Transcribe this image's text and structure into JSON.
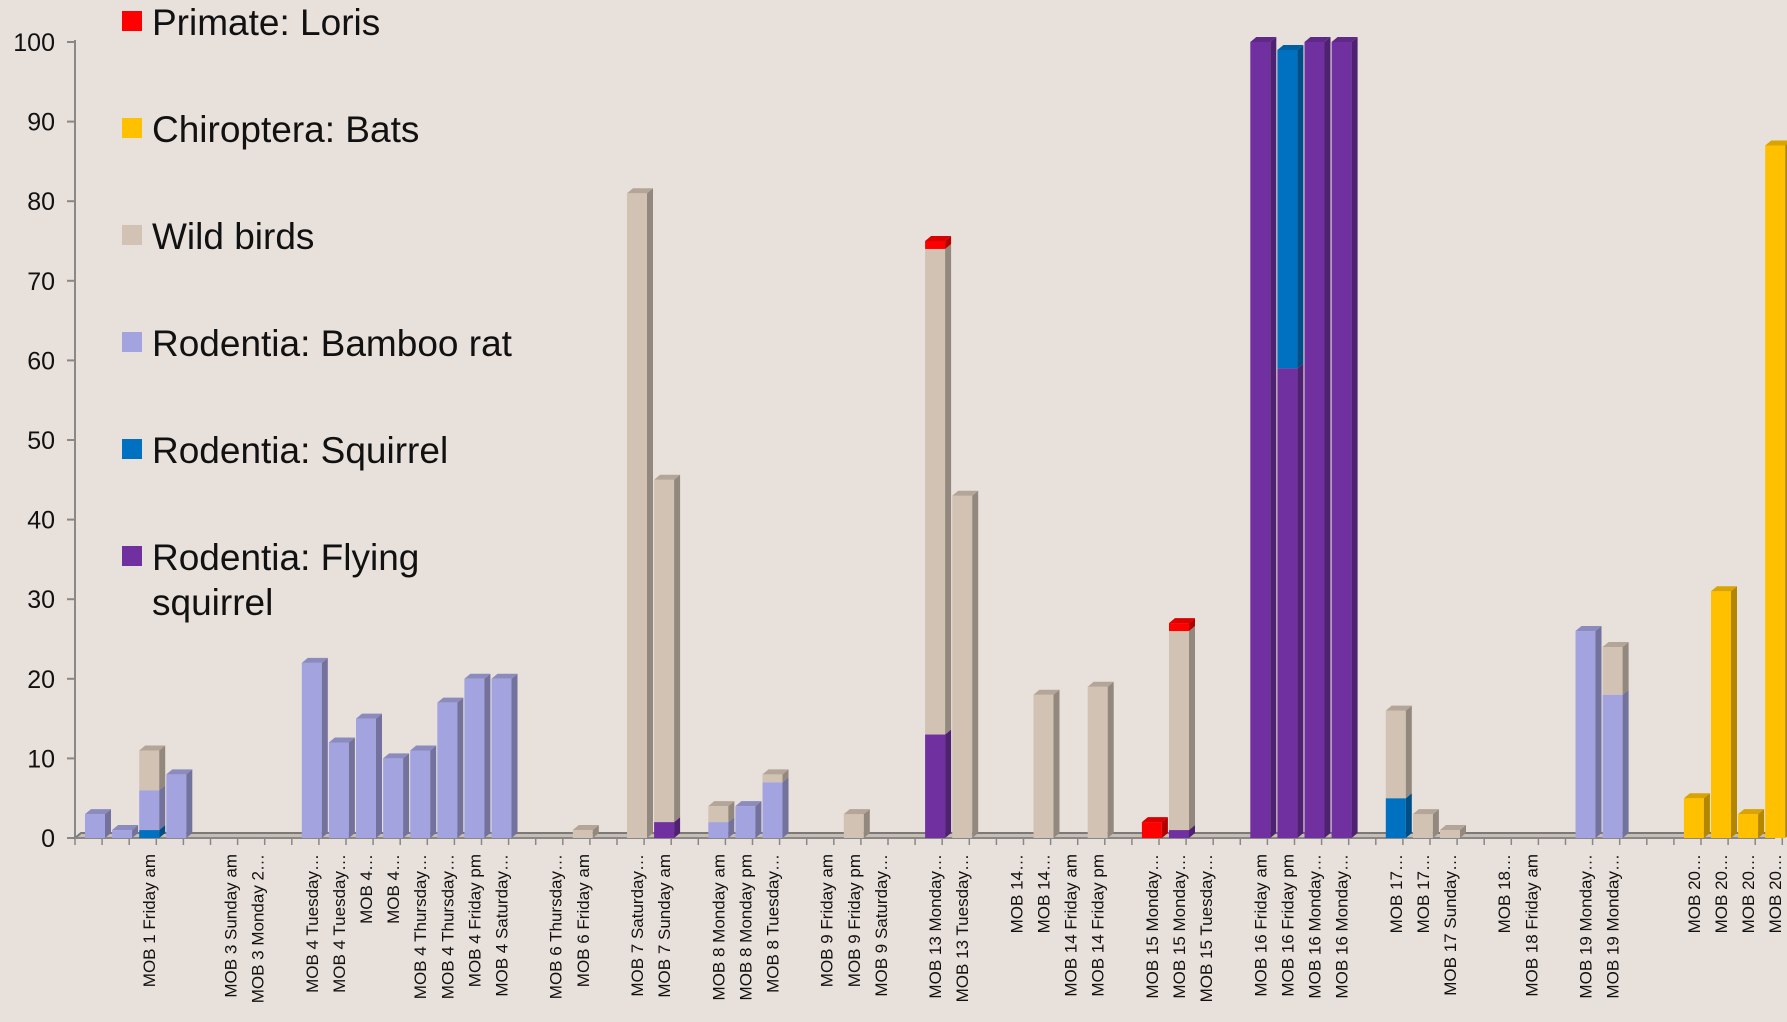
{
  "chart_data": {
    "type": "bar",
    "stacked": true,
    "title": "",
    "xlabel": "",
    "ylabel": "",
    "ylim": [
      0,
      100
    ],
    "yticks": [
      0,
      10,
      20,
      30,
      40,
      50,
      60,
      70,
      80,
      90,
      100
    ],
    "legend_position": "top-left",
    "series": [
      {
        "key": "flying",
        "name": "Rodentia: Flying squirrel",
        "color": "#7030a0"
      },
      {
        "key": "squirrel",
        "name": "Rodentia: Squirrel",
        "color": "#0070c0"
      },
      {
        "key": "bamboo",
        "name": "Rodentia: Bamboo rat",
        "color": "#a3a3e0"
      },
      {
        "key": "birds",
        "name": "Wild birds",
        "color": "#d2c2b3"
      },
      {
        "key": "bats",
        "name": "Chiroptera: Bats",
        "color": "#ffc000"
      },
      {
        "key": "loris",
        "name": "Primate: Loris",
        "color": "#ff0000"
      }
    ],
    "legend_order": [
      "loris",
      "bats",
      "birds",
      "bamboo",
      "squirrel",
      "flying"
    ],
    "bars": [
      {
        "slot": 0,
        "values": {
          "bamboo": 3
        }
      },
      {
        "slot": 1,
        "values": {
          "bamboo": 1
        }
      },
      {
        "slot": 2,
        "values": {
          "squirrel": 1,
          "bamboo": 5,
          "birds": 5
        }
      },
      {
        "slot": 3,
        "values": {
          "bamboo": 8
        }
      },
      {
        "slot": 8,
        "values": {
          "bamboo": 22
        }
      },
      {
        "slot": 9,
        "values": {
          "bamboo": 12
        }
      },
      {
        "slot": 10,
        "values": {
          "bamboo": 15
        }
      },
      {
        "slot": 11,
        "values": {
          "bamboo": 10
        }
      },
      {
        "slot": 12,
        "values": {
          "bamboo": 11
        }
      },
      {
        "slot": 13,
        "values": {
          "bamboo": 17
        }
      },
      {
        "slot": 14,
        "values": {
          "bamboo": 20
        }
      },
      {
        "slot": 15,
        "values": {
          "bamboo": 20
        }
      },
      {
        "slot": 18,
        "values": {
          "birds": 1
        }
      },
      {
        "slot": 20,
        "values": {
          "birds": 81
        }
      },
      {
        "slot": 21,
        "values": {
          "flying": 2,
          "birds": 43
        }
      },
      {
        "slot": 23,
        "values": {
          "bamboo": 2,
          "birds": 2
        }
      },
      {
        "slot": 24,
        "values": {
          "bamboo": 4
        }
      },
      {
        "slot": 25,
        "values": {
          "bamboo": 7,
          "birds": 1
        }
      },
      {
        "slot": 28,
        "values": {
          "birds": 3
        }
      },
      {
        "slot": 31,
        "values": {
          "flying": 13,
          "birds": 61,
          "loris": 1
        }
      },
      {
        "slot": 32,
        "values": {
          "birds": 43
        }
      },
      {
        "slot": 35,
        "values": {
          "birds": 18
        }
      },
      {
        "slot": 37,
        "values": {
          "birds": 19
        }
      },
      {
        "slot": 39,
        "values": {
          "loris": 2
        }
      },
      {
        "slot": 40,
        "values": {
          "flying": 1,
          "birds": 25,
          "loris": 1
        }
      },
      {
        "slot": 43,
        "values": {
          "flying": 100
        }
      },
      {
        "slot": 44,
        "values": {
          "flying": 59,
          "squirrel": 40
        }
      },
      {
        "slot": 45,
        "values": {
          "flying": 100
        }
      },
      {
        "slot": 46,
        "values": {
          "flying": 100
        }
      },
      {
        "slot": 48,
        "values": {
          "squirrel": 5,
          "birds": 11
        }
      },
      {
        "slot": 49,
        "values": {
          "birds": 3
        }
      },
      {
        "slot": 50,
        "values": {
          "birds": 1
        }
      },
      {
        "slot": 55,
        "values": {
          "bamboo": 26
        }
      },
      {
        "slot": 56,
        "values": {
          "bamboo": 18,
          "birds": 6
        }
      },
      {
        "slot": 59,
        "values": {
          "bats": 5
        }
      },
      {
        "slot": 60,
        "values": {
          "bats": 31
        }
      },
      {
        "slot": 61,
        "values": {
          "bats": 3
        }
      },
      {
        "slot": 62,
        "values": {
          "bats": 87
        }
      }
    ],
    "x_labels": [
      {
        "slot": 2,
        "text": "MOB 1 Friday am"
      },
      {
        "slot": 5,
        "text": "MOB 3 Sunday am"
      },
      {
        "slot": 6,
        "text": "MOB 3 Monday 2…"
      },
      {
        "slot": 8,
        "text": "MOB 4 Tuesday…"
      },
      {
        "slot": 9,
        "text": "MOB 4 Tuesday…"
      },
      {
        "slot": 10,
        "text": "MOB 4…"
      },
      {
        "slot": 11,
        "text": "MOB 4…"
      },
      {
        "slot": 12,
        "text": "MOB 4 Thursday…"
      },
      {
        "slot": 13,
        "text": "MOB 4 Thursday…"
      },
      {
        "slot": 14,
        "text": "MOB 4 Friday pm"
      },
      {
        "slot": 15,
        "text": "MOB 4 Saturday…"
      },
      {
        "slot": 17,
        "text": "MOB 6 Thursday…"
      },
      {
        "slot": 18,
        "text": "MOB 6 Friday am"
      },
      {
        "slot": 20,
        "text": "MOB 7 Saturday…"
      },
      {
        "slot": 21,
        "text": "MOB 7 Sunday am"
      },
      {
        "slot": 23,
        "text": "MOB 8 Monday am"
      },
      {
        "slot": 24,
        "text": "MOB 8 Monday pm"
      },
      {
        "slot": 25,
        "text": "MOB 8 Tuesday…"
      },
      {
        "slot": 27,
        "text": "MOB 9 Friday am"
      },
      {
        "slot": 28,
        "text": "MOB 9 Friday pm"
      },
      {
        "slot": 29,
        "text": "MOB 9 Saturday…"
      },
      {
        "slot": 31,
        "text": "MOB 13 Monday…"
      },
      {
        "slot": 32,
        "text": "MOB 13 Tuesday…"
      },
      {
        "slot": 34,
        "text": "MOB 14…"
      },
      {
        "slot": 35,
        "text": "MOB 14…"
      },
      {
        "slot": 36,
        "text": "MOB 14 Friday am"
      },
      {
        "slot": 37,
        "text": "MOB 14 Friday pm"
      },
      {
        "slot": 39,
        "text": "MOB 15 Monday…"
      },
      {
        "slot": 40,
        "text": "MOB 15 Monday…"
      },
      {
        "slot": 41,
        "text": "MOB 15 Tuesday…"
      },
      {
        "slot": 43,
        "text": "MOB 16 Friday am"
      },
      {
        "slot": 44,
        "text": "MOB 16 Friday pm"
      },
      {
        "slot": 45,
        "text": "MOB 16 Monday…"
      },
      {
        "slot": 46,
        "text": "MOB 16 Monday…"
      },
      {
        "slot": 48,
        "text": "MOB 17…"
      },
      {
        "slot": 49,
        "text": "MOB 17…"
      },
      {
        "slot": 50,
        "text": "MOB 17 Sunday…"
      },
      {
        "slot": 52,
        "text": "MOB 18…"
      },
      {
        "slot": 53,
        "text": "MOB 18 Friday am"
      },
      {
        "slot": 55,
        "text": "MOB 19 Monday…"
      },
      {
        "slot": 56,
        "text": "MOB 19 Monday…"
      },
      {
        "slot": 59,
        "text": "MOB 20…"
      },
      {
        "slot": 60,
        "text": "MOB 20…"
      },
      {
        "slot": 61,
        "text": "MOB 20…"
      },
      {
        "slot": 62,
        "text": "MOB 20…"
      }
    ]
  }
}
